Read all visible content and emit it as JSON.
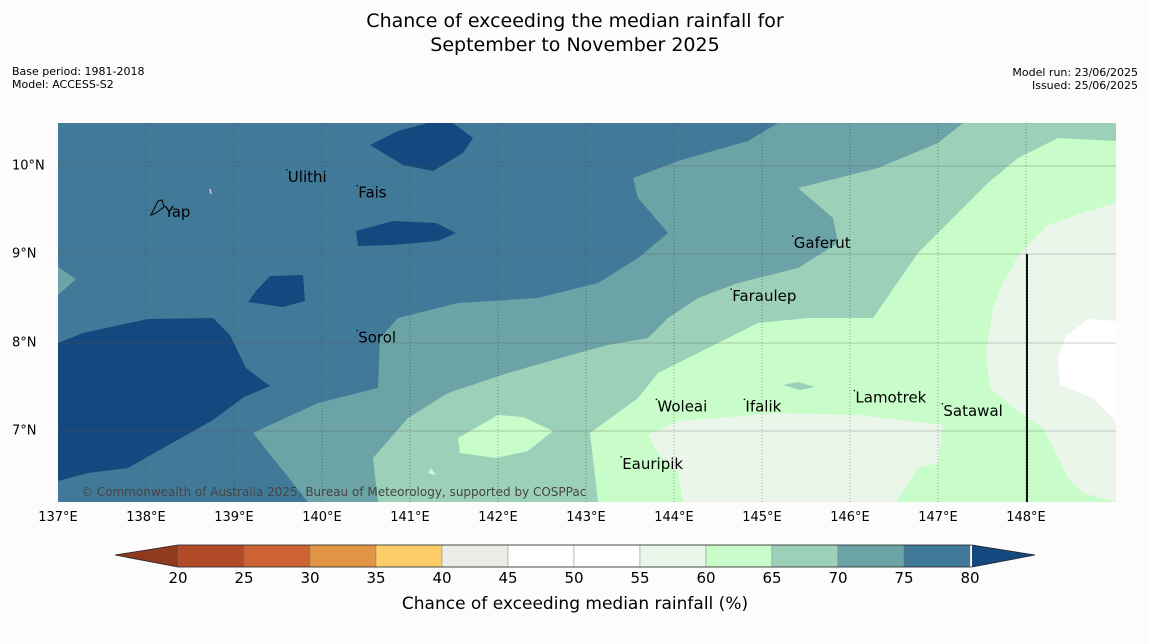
{
  "title": {
    "line1": "Chance of exceeding the median rainfall for",
    "line2": "September to November 2025"
  },
  "meta_left": {
    "base_period": "Base period: 1981-2018",
    "model": "Model: ACCESS-S2"
  },
  "meta_right": {
    "model_run": "Model run: 23/06/2025",
    "issued": "Issued: 25/06/2025"
  },
  "map": {
    "copyright": "© Commonwealth of Australia 2025, Bureau of Meteorology, supported by COSPPac",
    "lon_range": [
      137,
      149
    ],
    "lat_range": [
      6.2,
      10.5
    ],
    "lon_ticks": [
      "137°E",
      "138°E",
      "139°E",
      "140°E",
      "141°E",
      "142°E",
      "143°E",
      "144°E",
      "145°E",
      "146°E",
      "147°E",
      "148°E"
    ],
    "lat_ticks": [
      "10°N",
      "9°N",
      "8°N",
      "7°N"
    ],
    "places": [
      {
        "name": "Yap",
        "lon": 138.2,
        "lat": 9.55
      },
      {
        "name": "Ulithi",
        "lon": 139.6,
        "lat": 9.95
      },
      {
        "name": "Fais",
        "lon": 140.4,
        "lat": 9.77
      },
      {
        "name": "Gaferut",
        "lon": 145.35,
        "lat": 9.2
      },
      {
        "name": "Faraulep",
        "lon": 144.65,
        "lat": 8.6
      },
      {
        "name": "Sorol",
        "lon": 140.4,
        "lat": 8.13
      },
      {
        "name": "Lamotrek",
        "lon": 146.05,
        "lat": 7.45
      },
      {
        "name": "Woleai",
        "lon": 143.8,
        "lat": 7.35
      },
      {
        "name": "Ifalik",
        "lon": 144.8,
        "lat": 7.35
      },
      {
        "name": "Satawal",
        "lon": 147.05,
        "lat": 7.3
      },
      {
        "name": "Eauripik",
        "lon": 143.4,
        "lat": 6.7
      }
    ]
  },
  "colorbar": {
    "title": "Chance of exceeding median rainfall (%)",
    "ticks": [
      "20",
      "25",
      "30",
      "35",
      "40",
      "45",
      "50",
      "55",
      "60",
      "65",
      "70",
      "75",
      "80"
    ],
    "colors": {
      "below_20": "#8f3a1d",
      "20_25": "#b34a27",
      "25_30": "#cd6232",
      "30_35": "#e29545",
      "35_40": "#fdcd6a",
      "40_45": "#ecebe6",
      "45_50": "#ffffff",
      "50_55": "#ffffff",
      "55_60": "#eaf6ea",
      "60_65": "#c8fcc8",
      "65_70": "#9dd0b9",
      "70_75": "#6ca3a7",
      "75_80": "#417a99",
      "above_80": "#14497f"
    }
  }
}
